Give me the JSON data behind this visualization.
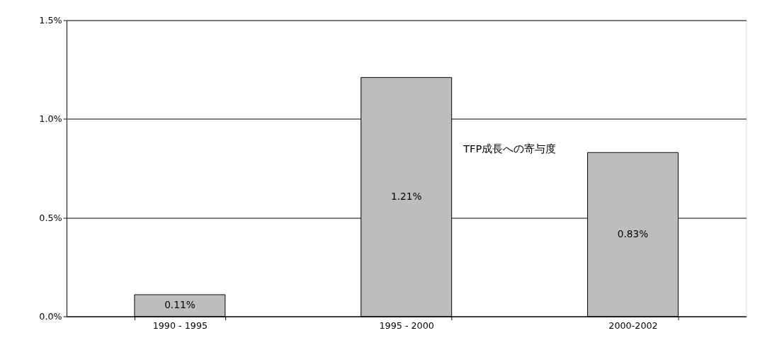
{
  "chart_data": {
    "type": "bar",
    "categories": [
      "1990 - 1995",
      "1995 - 2000",
      "2000-2002"
    ],
    "values": [
      0.11,
      1.21,
      0.83
    ],
    "value_labels": [
      "0.11%",
      "1.21%",
      "0.83%"
    ],
    "color": "#bdbdbd",
    "ylim": [
      0,
      1.5
    ],
    "yticks": [
      {
        "value": 0,
        "label": "0.0%"
      },
      {
        "value": 0.5,
        "label": "0.5%"
      },
      {
        "value": 1,
        "label": "1.0%"
      },
      {
        "value": 1.5,
        "label": "1.5%"
      }
    ],
    "grid": "y",
    "annotations": [
      "TFP成長への寄与度"
    ]
  }
}
